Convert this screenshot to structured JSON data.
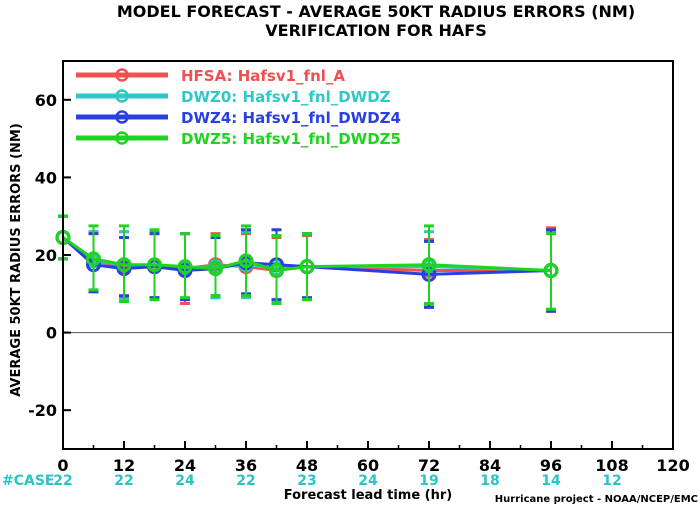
{
  "chart_data": {
    "type": "line",
    "title": "MODEL FORECAST - AVERAGE 50KT RADIUS ERRORS (NM)",
    "subtitle": "VERIFICATION FOR HAFS",
    "xlabel": "Forecast lead time (hr)",
    "ylabel": "AVERAGE 50KT RADIUS ERRORS (NM)",
    "xlim": [
      0,
      120
    ],
    "ylim": [
      -30,
      70
    ],
    "xticks": [
      0,
      12,
      24,
      36,
      48,
      60,
      72,
      84,
      96,
      108,
      120
    ],
    "yticks": [
      -20,
      0,
      20,
      40,
      60
    ],
    "case_label": "#CASE",
    "case_x": [
      0,
      12,
      24,
      36,
      48,
      60,
      72,
      84,
      96,
      108
    ],
    "case_counts": [
      "22",
      "22",
      "24",
      "22",
      "23",
      "24",
      "19",
      "18",
      "14",
      "12"
    ],
    "credit": "Hurricane project - NOAA/NCEP/EMC",
    "legend_position": "top-left",
    "x": [
      0,
      6,
      12,
      18,
      24,
      30,
      36,
      42,
      48,
      72,
      96
    ],
    "series": [
      {
        "name": "HFSA: Hafsv1_fnl_A",
        "color": "#f0504f",
        "values": [
          24.5,
          18.5,
          17,
          17,
          16.5,
          17.5,
          17,
          16,
          17,
          16,
          16
        ],
        "err_low": [
          19,
          11,
          9,
          8.5,
          7.5,
          9,
          9.5,
          8,
          8.5,
          7.5,
          5.5
        ],
        "err_high": [
          30,
          26,
          26,
          26,
          25.5,
          25.5,
          25.5,
          24.5,
          25,
          24,
          27
        ]
      },
      {
        "name": "DWZ0: Hafsv1_fnl_DWDZ",
        "color": "#2ec8c6",
        "values": [
          24.5,
          18.5,
          17.5,
          17,
          16.5,
          17,
          17.5,
          16.5,
          17,
          17,
          16
        ],
        "err_low": [
          19,
          11,
          8.5,
          9,
          8.5,
          9,
          9,
          8,
          8.5,
          7,
          6
        ],
        "err_high": [
          30,
          26,
          26,
          25.5,
          25.5,
          25,
          26,
          25,
          25.5,
          26,
          26
        ]
      },
      {
        "name": "DWZ4: Hafsv1_fnl_DWDZ4",
        "color": "#2a3fe0",
        "values": [
          24.5,
          17.5,
          16.5,
          17,
          16,
          16.5,
          18,
          17.5,
          17,
          15,
          16
        ],
        "err_low": [
          19,
          10.5,
          9.5,
          9,
          8.5,
          9.5,
          10,
          8.5,
          9,
          6.5,
          5.5
        ],
        "err_high": [
          30,
          25.5,
          24.5,
          25.5,
          25.5,
          24.5,
          26.5,
          26.5,
          25.5,
          23.5,
          26.5
        ]
      },
      {
        "name": "DWZ5: Hafsv1_fnl_DWDZ5",
        "color": "#21d321",
        "values": [
          24.5,
          19,
          17.5,
          17.5,
          17,
          16.5,
          18.5,
          16,
          17,
          17.5,
          16
        ],
        "err_low": [
          19,
          11,
          8,
          8.5,
          9,
          9.5,
          9.5,
          7.5,
          8.5,
          7.5,
          6
        ],
        "err_high": [
          30,
          27.5,
          27.5,
          26.5,
          25.5,
          25,
          27.5,
          25,
          25.5,
          27.5,
          25.5
        ]
      }
    ]
  }
}
